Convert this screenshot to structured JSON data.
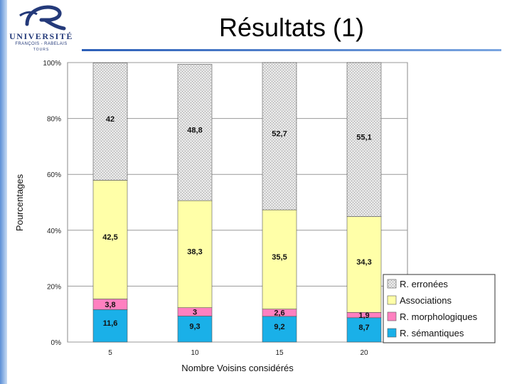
{
  "header": {
    "title": "Résultats (1)",
    "logo_text": "UNIVERSITÉ",
    "logo_subtext": "FRANÇOIS - RABELAIS",
    "logo_subtext2": "TOURS"
  },
  "chart_data": {
    "type": "bar",
    "stacked": true,
    "percent": true,
    "categories": [
      "5",
      "10",
      "15",
      "20"
    ],
    "xlabel": "Nombre Voisins considérés",
    "ylabel": "Pourcentages",
    "ylim": [
      0,
      100
    ],
    "yticks": [
      "0%",
      "20%",
      "40%",
      "60%",
      "80%",
      "100%"
    ],
    "grid": true,
    "legend_position": "bottom-right",
    "series": [
      {
        "name": "R. sémantiques",
        "color": "#1ab0e8",
        "values": [
          11.6,
          9.3,
          9.2,
          8.7
        ],
        "labels": [
          "11,6",
          "9,3",
          "9,2",
          "8,7"
        ]
      },
      {
        "name": "R. morphologiques",
        "color": "#ff80c0",
        "values": [
          3.8,
          3,
          2.6,
          1.9
        ],
        "labels": [
          "3,8",
          "3",
          "2,6",
          "1,9"
        ]
      },
      {
        "name": "Associations",
        "color": "#ffffa8",
        "values": [
          42.5,
          38.3,
          35.5,
          34.3
        ],
        "labels": [
          "42,5",
          "38,3",
          "35,5",
          "34,3"
        ]
      },
      {
        "name": "R. erronées",
        "color": "#d8d8d8",
        "values": [
          42,
          48.8,
          52.7,
          55.1
        ],
        "labels": [
          "42",
          "48,8",
          "52,7",
          "55,1"
        ]
      }
    ]
  }
}
